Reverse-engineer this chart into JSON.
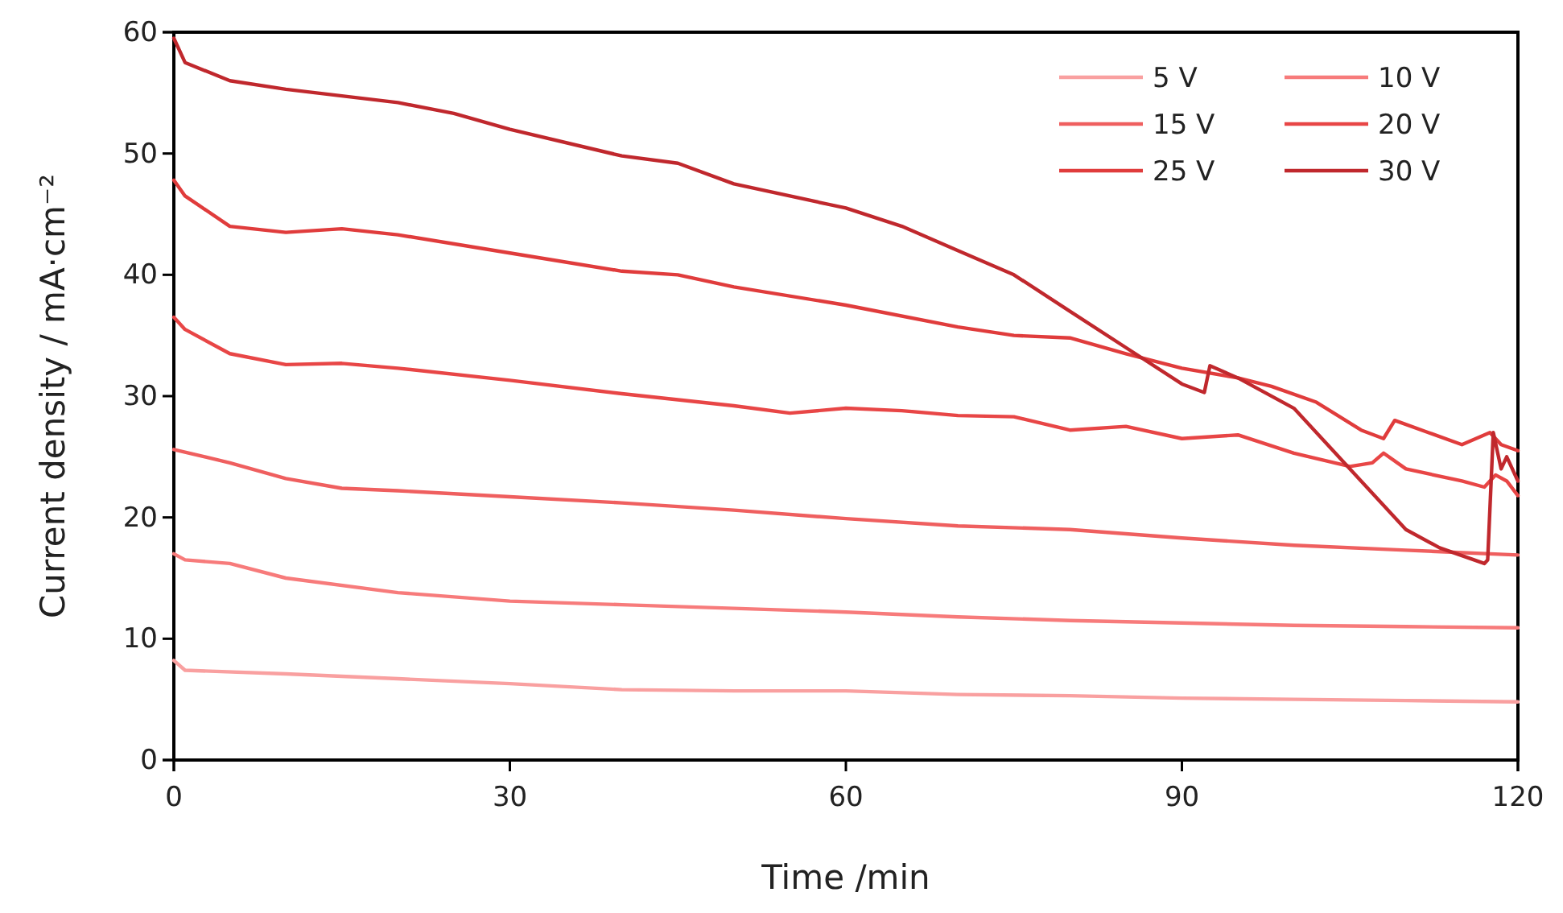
{
  "chart_data": {
    "type": "line",
    "xlabel": "Time /min",
    "ylabel": "Current density / mA·cm⁻²",
    "xlim": [
      0,
      120
    ],
    "ylim": [
      0,
      60
    ],
    "xticks": [
      0,
      30,
      60,
      90,
      120
    ],
    "yticks": [
      0,
      10,
      20,
      30,
      40,
      50,
      60
    ],
    "grid": false,
    "legend": "top right",
    "line_style": "solid",
    "marker": "none",
    "series": [
      {
        "name": "5 V",
        "color": "#f9a0a0",
        "x": [
          0,
          1,
          10,
          20,
          30,
          40,
          50,
          60,
          70,
          80,
          90,
          100,
          110,
          120
        ],
        "values": [
          8.2,
          7.4,
          7.1,
          6.7,
          6.3,
          5.8,
          5.7,
          5.7,
          5.4,
          5.3,
          5.1,
          5.0,
          4.9,
          4.8
        ]
      },
      {
        "name": "10 V",
        "color": "#f77b7b",
        "x": [
          0,
          1,
          5,
          10,
          20,
          30,
          40,
          50,
          60,
          70,
          80,
          90,
          100,
          110,
          120
        ],
        "values": [
          17,
          16.5,
          16.2,
          15,
          13.8,
          13.1,
          12.8,
          12.5,
          12.2,
          11.8,
          11.5,
          11.3,
          11.1,
          11,
          10.9
        ]
      },
      {
        "name": "15 V",
        "color": "#ef5f5f",
        "x": [
          0,
          5,
          10,
          15,
          20,
          30,
          40,
          50,
          60,
          70,
          80,
          90,
          100,
          110,
          120
        ],
        "values": [
          25.6,
          24.5,
          23.2,
          22.4,
          22.2,
          21.7,
          21.2,
          20.6,
          19.9,
          19.3,
          19,
          18.3,
          17.7,
          17.3,
          16.9
        ]
      },
      {
        "name": "20 V",
        "color": "#e84646",
        "x": [
          0,
          1,
          5,
          10,
          15,
          20,
          30,
          40,
          50,
          55,
          60,
          65,
          70,
          75,
          80,
          85,
          90,
          95,
          100,
          105,
          107,
          108,
          110,
          115,
          117,
          118,
          119,
          120
        ],
        "values": [
          36.5,
          35.5,
          33.5,
          32.6,
          32.7,
          32.3,
          31.3,
          30.2,
          29.2,
          28.6,
          29,
          28.8,
          28.4,
          28.3,
          27.2,
          27.5,
          26.5,
          26.8,
          25.3,
          24.2,
          24.5,
          25.3,
          24,
          23,
          22.5,
          23.5,
          23,
          21.8
        ]
      },
      {
        "name": "25 V",
        "color": "#e03c3c",
        "x": [
          0,
          1,
          5,
          10,
          15,
          20,
          30,
          40,
          45,
          50,
          60,
          70,
          75,
          80,
          85,
          90,
          95,
          98,
          102,
          106,
          108,
          109,
          112,
          115,
          117.5,
          118.5,
          120
        ],
        "values": [
          47.8,
          46.5,
          44,
          43.5,
          43.8,
          43.3,
          41.8,
          40.3,
          40,
          39,
          37.5,
          35.7,
          35,
          34.8,
          33.5,
          32.3,
          31.5,
          30.8,
          29.5,
          27.2,
          26.5,
          28,
          27,
          26,
          27,
          26,
          25.5
        ]
      },
      {
        "name": "30 V",
        "color": "#c0282d",
        "x": [
          0,
          1,
          5,
          10,
          20,
          25,
          30,
          40,
          45,
          50,
          60,
          65,
          70,
          75,
          80,
          85,
          90,
          92,
          92.5,
          95,
          100,
          103,
          106,
          110,
          113,
          117,
          117.3,
          117.8,
          118.5,
          119,
          120
        ],
        "values": [
          59.5,
          57.5,
          56,
          55.3,
          54.2,
          53.3,
          52,
          49.8,
          49.2,
          47.5,
          45.5,
          44,
          42,
          40,
          37,
          34,
          31,
          30.3,
          32.5,
          31.5,
          29,
          26,
          23,
          19,
          17.5,
          16.2,
          16.5,
          27,
          24,
          25,
          23
        ]
      }
    ]
  }
}
